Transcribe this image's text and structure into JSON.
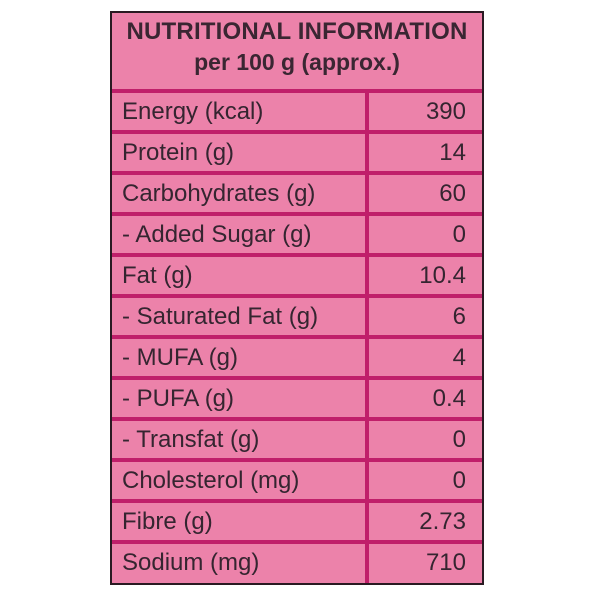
{
  "panel": {
    "title": "NUTRITIONAL INFORMATION",
    "subtitle": "per 100 g (approx.)"
  },
  "rows": [
    {
      "name": "Energy (kcal)",
      "value": "390"
    },
    {
      "name": "Protein (g)",
      "value": "14"
    },
    {
      "name": "Carbohydrates (g)",
      "value": "60"
    },
    {
      "name": "- Added Sugar (g)",
      "value": "0"
    },
    {
      "name": "Fat (g)",
      "value": "10.4"
    },
    {
      "name": "- Saturated Fat (g)",
      "value": "6"
    },
    {
      "name": "- MUFA (g)",
      "value": "4"
    },
    {
      "name": "- PUFA (g)",
      "value": "0.4"
    },
    {
      "name": "- Transfat (g)",
      "value": "0"
    },
    {
      "name": "Cholesterol (mg)",
      "value": "0"
    },
    {
      "name": "Fibre (g)",
      "value": "2.73"
    },
    {
      "name": "Sodium (mg)",
      "value": "710"
    }
  ],
  "colors": {
    "background": "#ec82aa",
    "rule": "#c01f6a",
    "text": "#352530",
    "border": "#2a1a22"
  }
}
